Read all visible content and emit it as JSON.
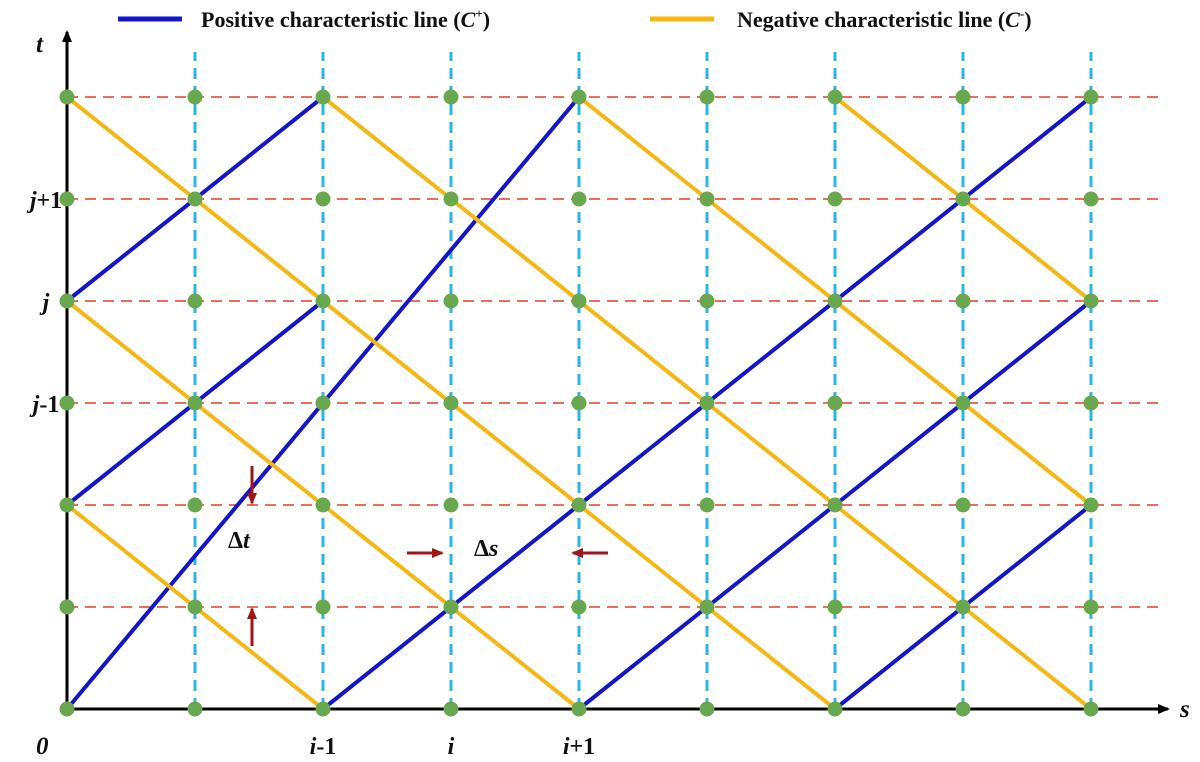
{
  "legend": {
    "positive": {
      "prefix": "Positive characteristic line (",
      "sym": "C",
      "sup": "+",
      "suffix": ")",
      "color": "#1414c8"
    },
    "negative": {
      "prefix": "Negative characteristic line (",
      "sym": "C",
      "sup": "-",
      "suffix": ")",
      "color": "#f5b714"
    }
  },
  "axes": {
    "x_label": "s",
    "y_label": "t",
    "origin": "0",
    "x_ticks": [
      {
        "col": 2,
        "a": "i",
        "b": "-1"
      },
      {
        "col": 3,
        "a": "i",
        "b": ""
      },
      {
        "col": 4,
        "a": "i",
        "b": "+1"
      }
    ],
    "y_ticks": [
      {
        "row": 5,
        "a": "j",
        "b": "+1"
      },
      {
        "row": 4,
        "a": "j",
        "b": ""
      },
      {
        "row": 3,
        "a": "j",
        "b": "-1"
      }
    ]
  },
  "grid": {
    "columns": 9,
    "rows": 7,
    "vertical_line_color": "#29b6e8",
    "horizontal_line_color": "#e8705a",
    "node_color": "#6aa84f"
  },
  "characteristics": {
    "positive_segments": [
      [
        0,
        0,
        4,
        6
      ],
      [
        2,
        0,
        8,
        6
      ],
      [
        0,
        2,
        2,
        4
      ],
      [
        0,
        4,
        2,
        6
      ],
      [
        4,
        0,
        8,
        4
      ],
      [
        6,
        0,
        8,
        2
      ]
    ],
    "negative_segments": [
      [
        0,
        6,
        6,
        0
      ],
      [
        0,
        4,
        4,
        0
      ],
      [
        0,
        2,
        2,
        0
      ],
      [
        2,
        6,
        8,
        0
      ],
      [
        4,
        6,
        8,
        2
      ],
      [
        6,
        6,
        8,
        4
      ]
    ]
  },
  "annotations": {
    "delta_t": {
      "sym": "Δ",
      "var": "t"
    },
    "delta_s": {
      "sym": "Δ",
      "var": "s"
    },
    "arrow_color": "#a01515"
  }
}
